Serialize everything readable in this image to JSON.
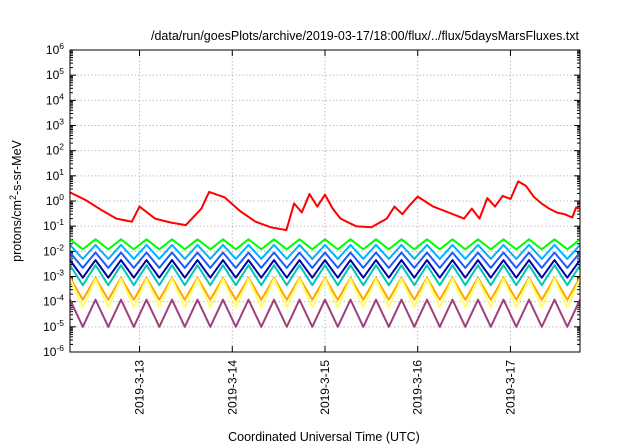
{
  "chart_data": {
    "type": "line",
    "title": "/data/run/goesPlots/archive/2019-03-17/18:00/flux/../flux/5daysMarsFluxes.txt",
    "xlabel": "Coordinated Universal Time (UTC)",
    "ylabel_parts": {
      "base": "protons/cm",
      "sup": "2",
      "rest": "-s-sr-MeV"
    },
    "y_scale": "log",
    "ylim_exponents": [
      -6,
      6
    ],
    "y_ticks": [
      {
        "base": "10",
        "exp": "-6"
      },
      {
        "base": "10",
        "exp": "-5"
      },
      {
        "base": "10",
        "exp": "-4"
      },
      {
        "base": "10",
        "exp": "-3"
      },
      {
        "base": "10",
        "exp": "-2"
      },
      {
        "base": "10",
        "exp": "-1"
      },
      {
        "base": "10",
        "exp": "0"
      },
      {
        "base": "10",
        "exp": "1"
      },
      {
        "base": "10",
        "exp": "2"
      },
      {
        "base": "10",
        "exp": "3"
      },
      {
        "base": "10",
        "exp": "4"
      },
      {
        "base": "10",
        "exp": "5"
      },
      {
        "base": "10",
        "exp": "6"
      }
    ],
    "xlim": [
      "2019-03-12 06:00",
      "2019-03-17 18:00"
    ],
    "x_ticks": [
      "2019-3-13",
      "2019-3-14",
      "2019-3-15",
      "2019-3-16",
      "2019-3-17"
    ],
    "grid": true,
    "legend": "none",
    "series": [
      {
        "color": "#ff0000",
        "x": [
          "2019-03-12 06:00",
          "2019-03-12 10:00",
          "2019-03-12 14:00",
          "2019-03-12 18:00",
          "2019-03-12 22:00",
          "2019-03-13 00:00",
          "2019-03-13 04:00",
          "2019-03-13 08:00",
          "2019-03-13 12:00",
          "2019-03-13 16:00",
          "2019-03-13 18:00",
          "2019-03-13 22:00",
          "2019-03-14 02:00",
          "2019-03-14 06:00",
          "2019-03-14 10:00",
          "2019-03-14 14:00",
          "2019-03-14 16:00",
          "2019-03-14 18:00",
          "2019-03-14 20:00",
          "2019-03-14 22:00",
          "2019-03-15 00:00",
          "2019-03-15 02:00",
          "2019-03-15 04:00",
          "2019-03-15 08:00",
          "2019-03-15 12:00",
          "2019-03-15 16:00",
          "2019-03-15 18:00",
          "2019-03-15 20:00",
          "2019-03-15 22:00",
          "2019-03-16 00:00",
          "2019-03-16 04:00",
          "2019-03-16 08:00",
          "2019-03-16 12:00",
          "2019-03-16 14:00",
          "2019-03-16 16:00",
          "2019-03-16 18:00",
          "2019-03-16 20:00",
          "2019-03-16 22:00",
          "2019-03-17 00:00",
          "2019-03-17 02:00",
          "2019-03-17 04:00",
          "2019-03-17 06:00",
          "2019-03-17 08:00",
          "2019-03-17 10:00",
          "2019-03-17 12:00",
          "2019-03-17 14:00",
          "2019-03-17 16:00",
          "2019-03-17 17:00",
          "2019-03-17 18:00"
        ],
        "values": [
          2.2,
          1.1,
          0.45,
          0.2,
          0.15,
          0.6,
          0.2,
          0.14,
          0.11,
          0.5,
          2.3,
          1.4,
          0.4,
          0.15,
          0.09,
          0.07,
          0.8,
          0.35,
          1.9,
          0.6,
          1.8,
          0.5,
          0.2,
          0.1,
          0.09,
          0.2,
          0.6,
          0.3,
          0.7,
          1.5,
          0.6,
          0.35,
          0.2,
          0.5,
          0.2,
          1.3,
          0.6,
          1.6,
          1.2,
          6.0,
          4.0,
          1.5,
          0.8,
          0.5,
          0.35,
          0.3,
          0.22,
          0.55,
          0.5
        ]
      },
      {
        "color": "#00ff00",
        "x": [
          "2019-03-12 06:00",
          "2019-03-17 18:00"
        ],
        "values": [
          0.02,
          0.02
        ],
        "teeth": 40,
        "peak": 0.03,
        "trough": 0.012
      },
      {
        "color": "#00b3ff",
        "x": [
          "2019-03-12 06:00",
          "2019-03-17 18:00"
        ],
        "values": [
          0.012,
          0.012
        ],
        "teeth": 40,
        "peak": 0.018,
        "trough": 0.005
      },
      {
        "color": "#1a5cff",
        "x": [
          "2019-03-12 06:00",
          "2019-03-17 18:00"
        ],
        "values": [
          0.006,
          0.006
        ],
        "teeth": 40,
        "peak": 0.009,
        "trough": 0.0022
      },
      {
        "color": "#0000aa",
        "x": [
          "2019-03-12 06:00",
          "2019-03-17 18:00"
        ],
        "values": [
          0.003,
          0.003
        ],
        "teeth": 40,
        "peak": 0.0045,
        "trough": 0.0009
      },
      {
        "color": "#00c8b4",
        "x": [
          "2019-03-12 06:00",
          "2019-03-17 18:00"
        ],
        "values": [
          0.002,
          0.002
        ],
        "teeth": 40,
        "peak": 0.0028,
        "trough": 0.00045
      },
      {
        "color": "#ffa500",
        "x": [
          "2019-03-12 06:00",
          "2019-03-17 18:00"
        ],
        "values": [
          0.0006,
          0.0006
        ],
        "teeth": 40,
        "peak": 0.0009,
        "trough": 0.00012
      },
      {
        "color": "#ffff66",
        "x": [
          "2019-03-12 06:00",
          "2019-03-17 18:00"
        ],
        "values": [
          0.0003,
          0.0003
        ],
        "teeth": 40,
        "peak": 0.0008,
        "trough": 6e-05
      },
      {
        "color": "#a0407a",
        "x": [
          "2019-03-12 06:00",
          "2019-03-17 18:00"
        ],
        "values": [
          5e-05,
          5e-05
        ],
        "teeth": 40,
        "peak": 0.00012,
        "trough": 1e-05
      }
    ]
  }
}
